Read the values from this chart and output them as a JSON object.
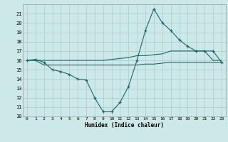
{
  "xlabel": "Humidex (Indice chaleur)",
  "xlim": [
    -0.5,
    23.5
  ],
  "ylim": [
    10,
    22
  ],
  "yticks": [
    10,
    11,
    12,
    13,
    14,
    15,
    16,
    17,
    18,
    19,
    20,
    21
  ],
  "xticks": [
    0,
    1,
    2,
    3,
    4,
    5,
    6,
    7,
    8,
    9,
    10,
    11,
    12,
    13,
    14,
    15,
    16,
    17,
    18,
    19,
    20,
    21,
    22,
    23
  ],
  "bg_color": "#cce8e8",
  "grid_color": "#aacccc",
  "line_color": "#1a6868",
  "line1_x": [
    0,
    1,
    2,
    3,
    4,
    5,
    6,
    7,
    8,
    9,
    10,
    11,
    12,
    13,
    14,
    15,
    16,
    17,
    18,
    19,
    20,
    21,
    22,
    23
  ],
  "line1_y": [
    16,
    16.1,
    15.8,
    15,
    14.8,
    14.5,
    14,
    13.9,
    12,
    10.5,
    10.5,
    11.5,
    13.2,
    16,
    19.2,
    21.5,
    20,
    19.2,
    18.2,
    17.5,
    17,
    17,
    17,
    15.8
  ],
  "line2_x": [
    0,
    1,
    2,
    3,
    4,
    5,
    6,
    7,
    8,
    9,
    10,
    11,
    12,
    13,
    14,
    15,
    16,
    17,
    18,
    19,
    20,
    21,
    22,
    23
  ],
  "line2_y": [
    16,
    16,
    16,
    16,
    16,
    16,
    16,
    16,
    16,
    16,
    16.1,
    16.2,
    16.3,
    16.5,
    16.5,
    16.6,
    16.7,
    17,
    17,
    17,
    17,
    17,
    16,
    16
  ],
  "line3_x": [
    0,
    1,
    2,
    3,
    4,
    5,
    6,
    7,
    8,
    9,
    10,
    11,
    12,
    13,
    14,
    15,
    16,
    17,
    18,
    19,
    20,
    21,
    22,
    23
  ],
  "line3_y": [
    16,
    16,
    15.5,
    15.5,
    15.5,
    15.5,
    15.5,
    15.5,
    15.5,
    15.5,
    15.5,
    15.5,
    15.5,
    15.5,
    15.6,
    15.6,
    15.7,
    15.8,
    15.8,
    15.8,
    15.8,
    15.8,
    15.8,
    15.8
  ]
}
